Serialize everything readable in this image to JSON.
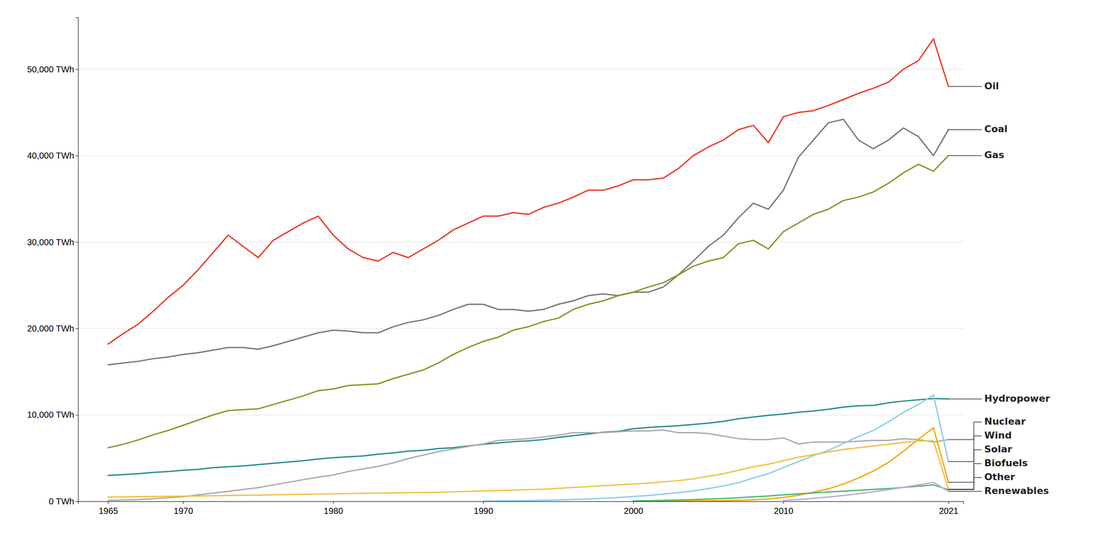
{
  "chart_data": {
    "type": "line",
    "series": [
      {
        "name": "Oil",
        "color": "#e8392a",
        "x": [
          1965,
          1966,
          1967,
          1968,
          1969,
          1970,
          1971,
          1972,
          1973,
          1974,
          1975,
          1976,
          1977,
          1978,
          1979,
          1980,
          1981,
          1982,
          1983,
          1984,
          1985,
          1986,
          1987,
          1988,
          1989,
          1990,
          1991,
          1992,
          1993,
          1994,
          1995,
          1996,
          1997,
          1998,
          1999,
          2000,
          2001,
          2002,
          2003,
          2004,
          2005,
          2006,
          2007,
          2008,
          2009,
          2010,
          2011,
          2012,
          2013,
          2014,
          2015,
          2016,
          2017,
          2018,
          2019,
          2020,
          2021
        ],
        "values": [
          18200,
          19400,
          20500,
          22000,
          23600,
          25000,
          26800,
          28800,
          30800,
          29500,
          28200,
          30200,
          31200,
          32200,
          33000,
          30800,
          29200,
          28200,
          27800,
          28800,
          28200,
          29200,
          30200,
          31400,
          32200,
          33000,
          33000,
          33400,
          33200,
          34000,
          34500,
          35200,
          36000,
          36000,
          36500,
          37200,
          37200,
          37400,
          38500,
          40000,
          41000,
          41800,
          43000,
          43500,
          41500,
          44500,
          45000,
          45200,
          45800,
          46500,
          47200,
          47800,
          48500,
          50000,
          51000,
          53500,
          48000
        ]
      },
      {
        "name": "Coal",
        "color": "#777777",
        "x": [
          1965,
          1966,
          1967,
          1968,
          1969,
          1970,
          1971,
          1972,
          1973,
          1974,
          1975,
          1976,
          1977,
          1978,
          1979,
          1980,
          1981,
          1982,
          1983,
          1984,
          1985,
          1986,
          1987,
          1988,
          1989,
          1990,
          1991,
          1992,
          1993,
          1994,
          1995,
          1996,
          1997,
          1998,
          1999,
          2000,
          2001,
          2002,
          2003,
          2004,
          2005,
          2006,
          2007,
          2008,
          2009,
          2010,
          2011,
          2012,
          2013,
          2014,
          2015,
          2016,
          2017,
          2018,
          2019,
          2020,
          2021
        ],
        "values": [
          15800,
          16000,
          16200,
          16500,
          16700,
          17000,
          17200,
          17500,
          17800,
          17800,
          17600,
          18000,
          18500,
          19000,
          19500,
          19800,
          19700,
          19500,
          19500,
          20200,
          20700,
          21000,
          21500,
          22200,
          22800,
          22800,
          22200,
          22200,
          22000,
          22200,
          22800,
          23200,
          23800,
          24000,
          23800,
          24200,
          24200,
          24800,
          26200,
          27800,
          29500,
          30800,
          32800,
          34500,
          33800,
          36000,
          39800,
          41800,
          43800,
          44200,
          41800,
          40800,
          41800,
          43200,
          42200,
          40000,
          43000
        ]
      },
      {
        "name": "Gas",
        "color": "#7a9a20",
        "x": [
          1965,
          1966,
          1967,
          1968,
          1969,
          1970,
          1971,
          1972,
          1973,
          1974,
          1975,
          1976,
          1977,
          1978,
          1979,
          1980,
          1981,
          1982,
          1983,
          1984,
          1985,
          1986,
          1987,
          1988,
          1989,
          1990,
          1991,
          1992,
          1993,
          1994,
          1995,
          1996,
          1997,
          1998,
          1999,
          2000,
          2001,
          2002,
          2003,
          2004,
          2005,
          2006,
          2007,
          2008,
          2009,
          2010,
          2011,
          2012,
          2013,
          2014,
          2015,
          2016,
          2017,
          2018,
          2019,
          2020,
          2021
        ],
        "values": [
          6200,
          6600,
          7100,
          7700,
          8200,
          8800,
          9400,
          10000,
          10500,
          10600,
          10700,
          11200,
          11700,
          12200,
          12800,
          13000,
          13400,
          13500,
          13600,
          14200,
          14700,
          15200,
          16000,
          17000,
          17800,
          18500,
          19000,
          19800,
          20200,
          20800,
          21200,
          22200,
          22800,
          23200,
          23800,
          24200,
          24800,
          25300,
          26200,
          27200,
          27800,
          28200,
          29800,
          30200,
          29200,
          31200,
          32200,
          33200,
          33800,
          34800,
          35200,
          35800,
          36800,
          38000,
          39000,
          38200,
          40000
        ]
      },
      {
        "name": "Hydropower",
        "color": "#2a8a8a",
        "x": [
          1965,
          1966,
          1967,
          1968,
          1969,
          1970,
          1971,
          1972,
          1973,
          1974,
          1975,
          1976,
          1977,
          1978,
          1979,
          1980,
          1981,
          1982,
          1983,
          1984,
          1985,
          1986,
          1987,
          1988,
          1989,
          1990,
          1991,
          1992,
          1993,
          1994,
          1995,
          1996,
          1997,
          1998,
          1999,
          2000,
          2001,
          2002,
          2003,
          2004,
          2005,
          2006,
          2007,
          2008,
          2009,
          2010,
          2011,
          2012,
          2013,
          2014,
          2015,
          2016,
          2017,
          2018,
          2019,
          2020,
          2021
        ],
        "values": [
          3000,
          3100,
          3200,
          3350,
          3450,
          3600,
          3700,
          3900,
          4000,
          4100,
          4250,
          4400,
          4550,
          4700,
          4900,
          5050,
          5150,
          5250,
          5450,
          5600,
          5800,
          5900,
          6100,
          6200,
          6400,
          6600,
          6750,
          6900,
          7000,
          7150,
          7400,
          7600,
          7800,
          8000,
          8100,
          8400,
          8550,
          8650,
          8750,
          8900,
          9050,
          9250,
          9550,
          9750,
          9950,
          10100,
          10300,
          10450,
          10650,
          10900,
          11050,
          11100,
          11400,
          11600,
          11750,
          11900,
          11850
        ]
      },
      {
        "name": "Nuclear",
        "color": "#aaaaaa",
        "x": [
          1965,
          1966,
          1967,
          1968,
          1969,
          1970,
          1971,
          1972,
          1973,
          1974,
          1975,
          1976,
          1977,
          1978,
          1979,
          1980,
          1981,
          1982,
          1983,
          1984,
          1985,
          1986,
          1987,
          1988,
          1989,
          1990,
          1991,
          1992,
          1993,
          1994,
          1995,
          1996,
          1997,
          1998,
          1999,
          2000,
          2001,
          2002,
          2003,
          2004,
          2005,
          2006,
          2007,
          2008,
          2009,
          2010,
          2011,
          2012,
          2013,
          2014,
          2015,
          2016,
          2017,
          2018,
          2019,
          2020,
          2021
        ],
        "values": [
          100,
          150,
          200,
          300,
          420,
          540,
          750,
          950,
          1150,
          1380,
          1580,
          1900,
          2200,
          2500,
          2800,
          3050,
          3450,
          3750,
          4050,
          4450,
          4950,
          5350,
          5750,
          6050,
          6350,
          6650,
          7050,
          7150,
          7250,
          7450,
          7650,
          7950,
          7950,
          7950,
          8050,
          8150,
          8150,
          8250,
          7950,
          7950,
          7850,
          7550,
          7250,
          7150,
          7150,
          7350,
          6650,
          6850,
          6850,
          6850,
          6950,
          7050,
          7050,
          7250,
          7150,
          6850,
          7150
        ]
      },
      {
        "name": "Wind",
        "color": "#87ceeb",
        "x": [
          1990,
          1991,
          1992,
          1993,
          1994,
          1995,
          1996,
          1997,
          1998,
          1999,
          2000,
          2001,
          2002,
          2003,
          2004,
          2005,
          2006,
          2007,
          2008,
          2009,
          2010,
          2011,
          2012,
          2013,
          2014,
          2015,
          2016,
          2017,
          2018,
          2019,
          2020,
          2021
        ],
        "values": [
          30,
          50,
          70,
          90,
          120,
          160,
          210,
          270,
          350,
          440,
          560,
          680,
          840,
          1000,
          1200,
          1480,
          1780,
          2150,
          2700,
          3200,
          3900,
          4600,
          5300,
          5900,
          6700,
          7500,
          8200,
          9200,
          10300,
          11200,
          12300,
          4600
        ]
      },
      {
        "name": "Solar",
        "color": "#f5a800",
        "x": [
          2000,
          2001,
          2002,
          2003,
          2004,
          2005,
          2006,
          2007,
          2008,
          2009,
          2010,
          2011,
          2012,
          2013,
          2014,
          2015,
          2016,
          2017,
          2018,
          2019,
          2020,
          2021
        ],
        "values": [
          10,
          15,
          20,
          30,
          45,
          60,
          80,
          120,
          180,
          280,
          450,
          700,
          1050,
          1450,
          2000,
          2700,
          3500,
          4500,
          5800,
          7200,
          8500,
          2200
        ]
      },
      {
        "name": "Biofuels",
        "color": "#f0c040",
        "x": [
          1965,
          1966,
          1967,
          1968,
          1969,
          1970,
          1971,
          1972,
          1973,
          1974,
          1975,
          1976,
          1977,
          1978,
          1979,
          1980,
          1981,
          1982,
          1983,
          1984,
          1985,
          1986,
          1987,
          1988,
          1989,
          1990,
          1991,
          1992,
          1993,
          1994,
          1995,
          1996,
          1997,
          1998,
          1999,
          2000,
          2001,
          2002,
          2003,
          2004,
          2005,
          2006,
          2007,
          2008,
          2009,
          2010,
          2011,
          2012,
          2013,
          2014,
          2015,
          2016,
          2017,
          2018,
          2019,
          2020,
          2021
        ],
        "values": [
          500,
          520,
          540,
          560,
          580,
          600,
          620,
          650,
          680,
          700,
          720,
          750,
          780,
          810,
          840,
          870,
          900,
          930,
          950,
          980,
          1000,
          1020,
          1050,
          1100,
          1150,
          1200,
          1250,
          1300,
          1350,
          1400,
          1500,
          1600,
          1700,
          1800,
          1900,
          2000,
          2100,
          2250,
          2400,
          2600,
          2900,
          3200,
          3600,
          4000,
          4300,
          4700,
          5100,
          5400,
          5700,
          6000,
          6200,
          6400,
          6600,
          6800,
          7000,
          7000,
          1400
        ]
      },
      {
        "name": "Other",
        "color": "#4ab870",
        "x": [
          2000,
          2001,
          2002,
          2003,
          2004,
          2005,
          2006,
          2007,
          2008,
          2009,
          2010,
          2011,
          2012,
          2013,
          2014,
          2015,
          2016,
          2017,
          2018,
          2019,
          2020,
          2021
        ],
        "values": [
          50,
          80,
          110,
          150,
          200,
          260,
          330,
          420,
          530,
          620,
          750,
          870,
          980,
          1080,
          1180,
          1280,
          1380,
          1480,
          1600,
          1750,
          1900,
          1350
        ]
      },
      {
        "name": "Renewables",
        "color": "#b8aad8",
        "x": [
          2010,
          2011,
          2012,
          2013,
          2014,
          2015,
          2016,
          2017,
          2018,
          2019,
          2020,
          2021
        ],
        "values": [
          100,
          200,
          350,
          500,
          680,
          880,
          1100,
          1350,
          1620,
          1900,
          2200,
          1150
        ]
      }
    ],
    "xlim": [
      1963,
      2022
    ],
    "xticks": [
      1965,
      1970,
      1980,
      1990,
      2000,
      2010,
      2021
    ],
    "ylim": [
      0,
      56000
    ],
    "yticks": [
      {
        "value": 0,
        "label": "0 TWh"
      },
      {
        "value": 10000,
        "label": "10,000 TWh"
      },
      {
        "value": 20000,
        "label": "20,000 TWh"
      },
      {
        "value": 30000,
        "label": "30,000 TWh"
      },
      {
        "value": 40000,
        "label": "40,000 TWh"
      },
      {
        "value": 50000,
        "label": "50,000 TWh"
      }
    ],
    "grid": true
  }
}
